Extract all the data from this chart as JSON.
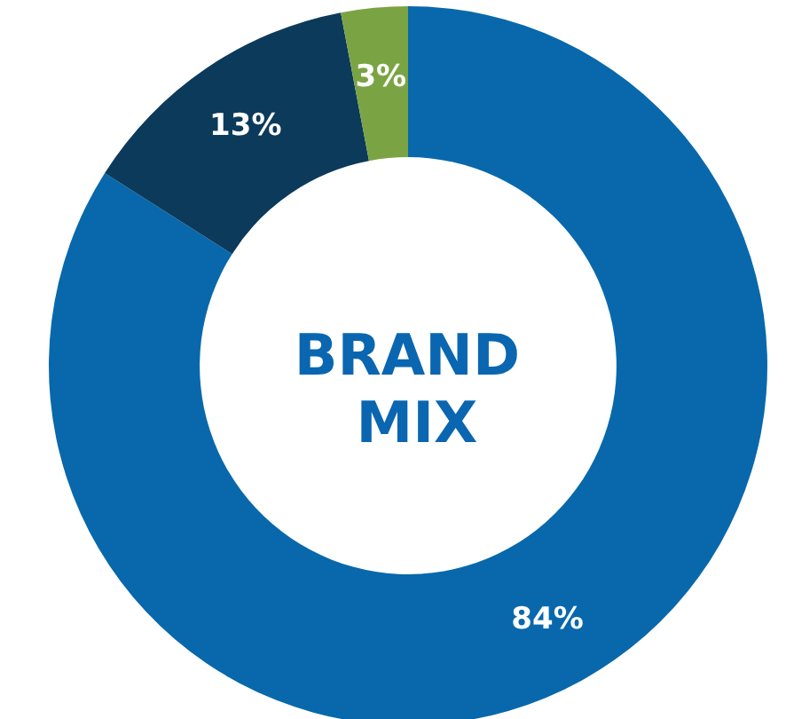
{
  "chart_data": {
    "type": "donut",
    "title": "BRAND MIX",
    "categories": [
      null,
      null,
      null
    ],
    "values": [
      84,
      13,
      3
    ],
    "colors": [
      "#0868ab",
      "#0c3a5b",
      "#7aa443"
    ],
    "value_labels": [
      "84%",
      "13%",
      "3%"
    ]
  }
}
